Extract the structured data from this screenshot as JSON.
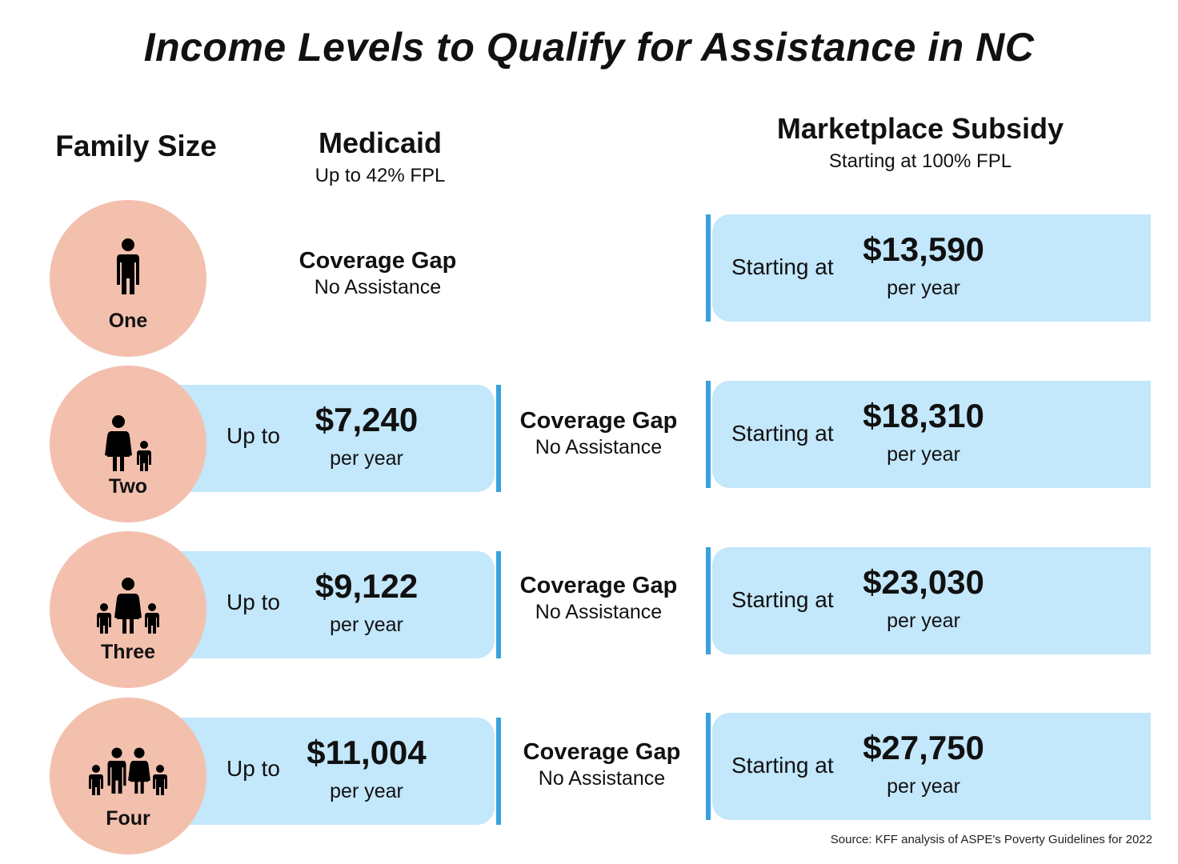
{
  "title": "Income Levels to Qualify for Assistance in NC",
  "headers": {
    "family_size": "Family Size",
    "medicaid": {
      "title": "Medicaid",
      "subtitle": "Up to 42% FPL"
    },
    "marketplace": {
      "title": "Marketplace Subsidy",
      "subtitle": "Starting at 100% FPL"
    }
  },
  "rows": [
    {
      "family": "One",
      "medicaid": null,
      "gap": {
        "title": "Coverage Gap",
        "subtitle": "No Assistance"
      },
      "marketplace": {
        "prefix": "Starting at",
        "amount": "$13,590",
        "period": "per year"
      }
    },
    {
      "family": "Two",
      "medicaid": {
        "prefix": "Up to",
        "amount": "$7,240",
        "period": "per year"
      },
      "gap": {
        "title": "Coverage Gap",
        "subtitle": "No Assistance"
      },
      "marketplace": {
        "prefix": "Starting at",
        "amount": "$18,310",
        "period": "per year"
      }
    },
    {
      "family": "Three",
      "medicaid": {
        "prefix": "Up to",
        "amount": "$9,122",
        "period": "per year"
      },
      "gap": {
        "title": "Coverage Gap",
        "subtitle": "No Assistance"
      },
      "marketplace": {
        "prefix": "Starting at",
        "amount": "$23,030",
        "period": "per year"
      }
    },
    {
      "family": "Four",
      "medicaid": {
        "prefix": "Up to",
        "amount": "$11,004",
        "period": "per year"
      },
      "gap": {
        "title": "Coverage Gap",
        "subtitle": "No Assistance"
      },
      "marketplace": {
        "prefix": "Starting at",
        "amount": "$27,750",
        "period": "per year"
      }
    }
  ],
  "icons": [
    "person-icon",
    "adult-child-icon",
    "adult-two-children-icon",
    "family-of-four-icon"
  ],
  "colors": {
    "circle": "#f3c0ae",
    "box": "#c3e7fb",
    "accent_bar": "#3aa1dd"
  },
  "source": "Source: KFF analysis of ASPE's Poverty Guidelines for 2022"
}
